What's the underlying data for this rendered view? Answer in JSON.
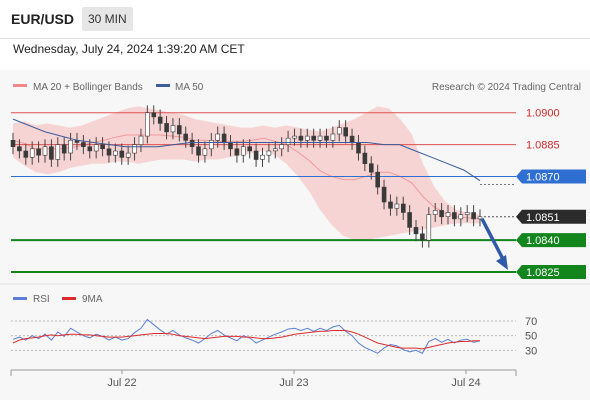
{
  "header": {
    "pair": "EUR/USD",
    "timeframe": "30 MIN",
    "datetime": "Wednesday, July 24, 2024 1:39:20 AM CET"
  },
  "legend": {
    "bollinger": "MA 20 + Bollinger Bands",
    "ma50": "MA 50",
    "credit": "Research © 2024 Trading Central",
    "rsi": "RSI",
    "rsi_ma": "9MA"
  },
  "colors": {
    "bollinger": "#f08a8a",
    "ma50": "#3b5b9a",
    "resistance": "#e25050",
    "pivot": "#2f6fd1",
    "support": "#12851d",
    "rsi": "#5a7fd6",
    "rsi_ma": "#dd2b2b"
  },
  "chart_data": {
    "type": "line",
    "title": "",
    "x_labels": [
      "Jul 22",
      "Jul 23",
      "Jul 24"
    ],
    "levels": [
      {
        "value": 1.09,
        "label": "1.0900",
        "kind": "resistance"
      },
      {
        "value": 1.0885,
        "label": "1.0885",
        "kind": "resistance"
      },
      {
        "value": 1.087,
        "label": "1.0870",
        "kind": "pivot"
      },
      {
        "value": 1.0851,
        "label": "1.0851",
        "kind": "current"
      },
      {
        "value": 1.084,
        "label": "1.0840",
        "kind": "support"
      },
      {
        "value": 1.0825,
        "label": "1.0825",
        "kind": "support"
      }
    ],
    "price_range": [
      1.0825,
      1.0906
    ],
    "price": [
      1.0884,
      1.0882,
      1.0879,
      1.0883,
      1.088,
      1.0884,
      1.0878,
      1.0885,
      1.0881,
      1.0887,
      1.0886,
      1.0884,
      1.0882,
      1.0885,
      1.0883,
      1.088,
      1.0882,
      1.0879,
      1.0881,
      1.0885,
      1.0889,
      1.09,
      1.0898,
      1.0895,
      1.0891,
      1.0894,
      1.089,
      1.0887,
      1.0884,
      1.088,
      1.0883,
      1.0887,
      1.089,
      1.0886,
      1.0883,
      1.088,
      1.0884,
      1.0882,
      1.0878,
      1.088,
      1.0882,
      1.0883,
      1.0885,
      1.0888,
      1.0889,
      1.0887,
      1.0889,
      1.0887,
      1.0889,
      1.0887,
      1.089,
      1.0893,
      1.0889,
      1.0886,
      1.0881,
      1.0876,
      1.0872,
      1.0865,
      1.0858,
      1.0855,
      1.0857,
      1.0853,
      1.0846,
      1.0843,
      1.084,
      1.0852,
      1.0854,
      1.0851,
      1.0853,
      1.085,
      1.0852,
      1.0853,
      1.085,
      1.0851
    ],
    "bb_upper": [
      1.0895,
      1.0896,
      1.0894,
      1.0895,
      1.0894,
      1.0893,
      1.0894,
      1.0896,
      1.0898,
      1.09,
      1.0902,
      1.0903,
      1.0902,
      1.0901,
      1.09,
      1.0899,
      1.0897,
      1.0896,
      1.0895,
      1.0894,
      1.0893,
      1.0893,
      1.0894,
      1.0893,
      1.0894,
      1.0893,
      1.0892,
      1.0891,
      1.0893,
      1.0895,
      1.0897,
      1.09,
      1.0903,
      1.0902,
      1.0897,
      1.089,
      1.0876,
      1.0865,
      1.0858,
      1.0854,
      1.0853,
      1.0852
    ],
    "bb_lower": [
      1.0879,
      1.0875,
      1.0872,
      1.0871,
      1.0872,
      1.0874,
      1.0875,
      1.0876,
      1.0876,
      1.0877,
      1.0877,
      1.0876,
      1.0877,
      1.0878,
      1.0878,
      1.0878,
      1.0877,
      1.0878,
      1.0878,
      1.0879,
      1.088,
      1.0881,
      1.0882,
      1.088,
      1.0876,
      1.087,
      1.0863,
      1.0854,
      1.0847,
      1.0842,
      1.084,
      1.084,
      1.0841,
      1.0842,
      1.0843,
      1.0844,
      1.0845,
      1.0846,
      1.0847,
      1.0848,
      1.0848,
      1.0848
    ],
    "ma50": [
      1.0897,
      1.0894,
      1.0891,
      1.0889,
      1.0887,
      1.0886,
      1.0885,
      1.0884,
      1.0884,
      1.0884,
      1.0885,
      1.0886,
      1.0886,
      1.0886,
      1.0886,
      1.0886,
      1.0886,
      1.0886,
      1.0886,
      1.0886,
      1.0886,
      1.0886,
      1.0886,
      1.0885,
      1.0885,
      1.0882,
      1.0879,
      1.0876,
      1.0873,
      1.0868
    ],
    "arrow": {
      "from": 1.0851,
      "to": 1.0825
    },
    "rsi_levels": [
      70,
      50,
      30
    ],
    "rsi": [
      45,
      48,
      44,
      50,
      46,
      52,
      44,
      55,
      49,
      60,
      55,
      50,
      47,
      52,
      49,
      44,
      48,
      44,
      46,
      54,
      60,
      72,
      65,
      58,
      52,
      57,
      51,
      47,
      44,
      40,
      46,
      53,
      57,
      51,
      47,
      43,
      50,
      47,
      40,
      44,
      48,
      52,
      55,
      59,
      60,
      57,
      60,
      56,
      60,
      57,
      62,
      64,
      56,
      50,
      40,
      34,
      30,
      26,
      33,
      38,
      36,
      31,
      28,
      30,
      26,
      42,
      46,
      41,
      45,
      40,
      44,
      45,
      41,
      43
    ],
    "rsi_ma": [
      40,
      44,
      46,
      47,
      48,
      50,
      51,
      50,
      51,
      52,
      52,
      51,
      51,
      50,
      49,
      48,
      48,
      48,
      49,
      50,
      51,
      52,
      53,
      53,
      53,
      52,
      50,
      49,
      48,
      47,
      46,
      47,
      48,
      49,
      49,
      49,
      48,
      48,
      47,
      46,
      46,
      47,
      48,
      50,
      52,
      53,
      54,
      55,
      56,
      56,
      57,
      57,
      57,
      55,
      52,
      48,
      44,
      40,
      38,
      36,
      34,
      33,
      33,
      33,
      32,
      34,
      36,
      38,
      40,
      41,
      42,
      42,
      43,
      43
    ],
    "rsi_range": [
      10,
      85
    ]
  }
}
